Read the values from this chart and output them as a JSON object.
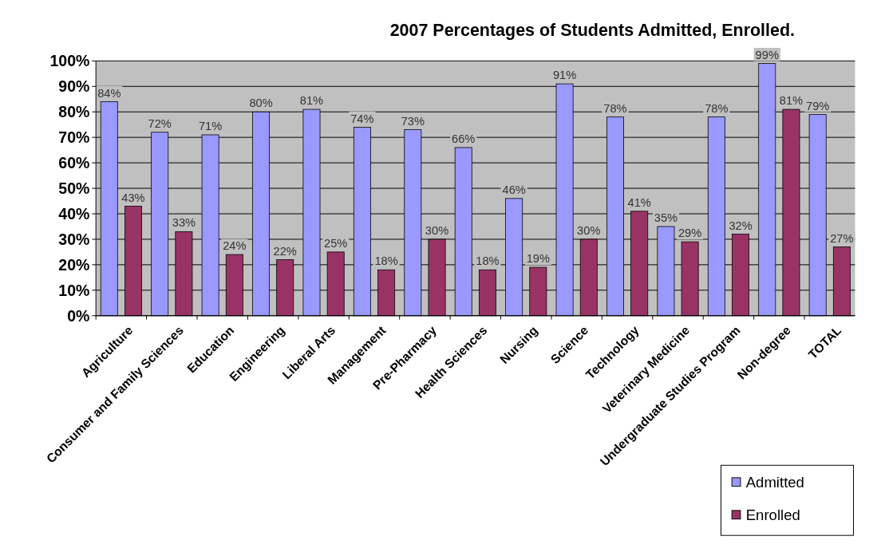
{
  "chart_data": {
    "type": "bar",
    "title": "2007 Percentages of Students Admitted, Enrolled.",
    "categories": [
      "Agriculture",
      "Consumer and Family Sciences",
      "Education",
      "Engineering",
      "Liberal Arts",
      "Management",
      "Pre-Pharmacy",
      "Health Sciences",
      "Nursing",
      "Science",
      "Technology",
      "Veterinary Medicine",
      "Undergraduate Studies Program",
      "Non-degree",
      "TOTAL"
    ],
    "series": [
      {
        "name": "Admitted",
        "color": "#9999ff",
        "values": [
          84,
          72,
          71,
          80,
          81,
          74,
          73,
          66,
          46,
          91,
          78,
          35,
          78,
          99,
          79
        ],
        "value_labels": [
          "84%",
          "72%",
          "71%",
          "80%",
          "81%",
          "74%",
          "73%",
          "66%",
          "46%",
          "91%",
          "78%",
          "35%",
          "78%",
          "99%",
          "79%"
        ]
      },
      {
        "name": "Enrolled",
        "color": "#993366",
        "values": [
          43,
          33,
          24,
          22,
          25,
          18,
          30,
          18,
          19,
          30,
          41,
          29,
          32,
          81,
          27
        ],
        "value_labels": [
          "43%",
          "33%",
          "24%",
          "22%",
          "25%",
          "18%",
          "30%",
          "18%",
          "19%",
          "30%",
          "41%",
          "29%",
          "32%",
          "81%",
          "27%"
        ]
      }
    ],
    "ylim": [
      0,
      100
    ],
    "yticks": [
      {
        "value": 0,
        "label": "0%"
      },
      {
        "value": 10,
        "label": "10%"
      },
      {
        "value": 20,
        "label": "20%"
      },
      {
        "value": 30,
        "label": "30%"
      },
      {
        "value": 40,
        "label": "40%"
      },
      {
        "value": 50,
        "label": "50%"
      },
      {
        "value": 60,
        "label": "60%"
      },
      {
        "value": 70,
        "label": "70%"
      },
      {
        "value": 80,
        "label": "80%"
      },
      {
        "value": 90,
        "label": "90%"
      },
      {
        "value": 100,
        "label": "100%"
      }
    ],
    "grid": "y",
    "legend": "bottom right"
  }
}
